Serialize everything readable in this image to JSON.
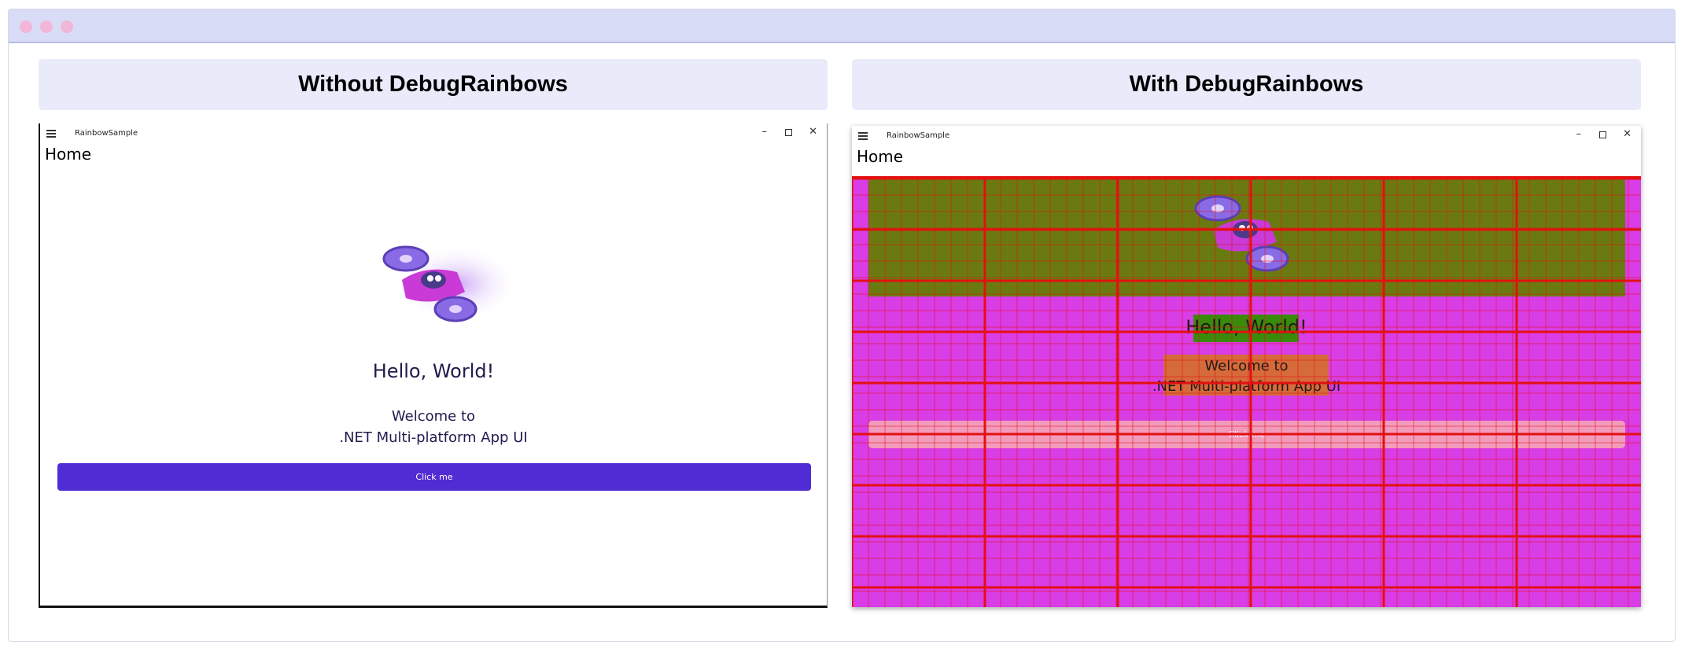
{
  "panels": {
    "left_title": "Without DebugRainbows",
    "right_title": "With DebugRainbows"
  },
  "app": {
    "name": "RainbowSample",
    "page_title": "Home",
    "hello": "Hello, World!",
    "welcome_line1": "Welcome to",
    "welcome_line2": ".NET Multi-platform App UI",
    "button_label": "Click me"
  },
  "icons": {
    "menu": "hamburger-icon",
    "minimize": "minimize-icon",
    "maximize": "maximize-icon",
    "close": "close-icon",
    "image": "dotnet-bot-drone-image"
  },
  "colors": {
    "accent": "#512bd4",
    "debug_background": "#d93de6",
    "debug_grid": "#e31010"
  }
}
